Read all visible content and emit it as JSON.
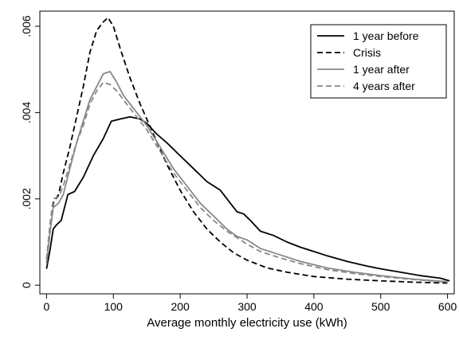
{
  "chart_data": {
    "type": "line",
    "title": "",
    "xlabel": "Average monthly electricity use (kWh)",
    "ylabel": "",
    "xlim": [
      -10,
      610
    ],
    "ylim": [
      -0.0002,
      0.00635
    ],
    "xticks": [
      0,
      100,
      200,
      300,
      400,
      500,
      600
    ],
    "xtick_labels": [
      "0",
      "100",
      "200",
      "300",
      "400",
      "500",
      "600"
    ],
    "yticks": [
      0,
      0.002,
      0.004,
      0.006
    ],
    "ytick_labels": [
      "0",
      ".002",
      ".004",
      ".006"
    ],
    "grid": false,
    "legend": {
      "position": "top-right"
    },
    "series": [
      {
        "name": "1 year before",
        "color": "#000000",
        "dash": "solid",
        "x": [
          0,
          5,
          10,
          15,
          22,
          32,
          42,
          55,
          70,
          85,
          97,
          110,
          125,
          140,
          150,
          165,
          180,
          200,
          220,
          240,
          260,
          275,
          285,
          295,
          305,
          320,
          340,
          360,
          380,
          400,
          420,
          450,
          480,
          500,
          530,
          560,
          590,
          603
        ],
        "y": [
          0.00038,
          0.0008,
          0.0013,
          0.0014,
          0.0015,
          0.0021,
          0.00217,
          0.0025,
          0.003,
          0.0034,
          0.0038,
          0.00385,
          0.0039,
          0.00385,
          0.00375,
          0.0035,
          0.0033,
          0.003,
          0.0027,
          0.0024,
          0.0022,
          0.0019,
          0.0017,
          0.00165,
          0.0015,
          0.00125,
          0.00115,
          0.001,
          0.00088,
          0.00078,
          0.00068,
          0.00055,
          0.00044,
          0.00038,
          0.0003,
          0.00022,
          0.00016,
          0.0001
        ]
      },
      {
        "name": "Crisis",
        "color": "#000000",
        "dash": "dashed",
        "x": [
          0,
          5,
          10,
          18,
          25,
          35,
          45,
          55,
          65,
          75,
          85,
          92,
          100,
          110,
          125,
          140,
          160,
          180,
          200,
          220,
          240,
          260,
          280,
          300,
          330,
          360,
          400,
          450,
          500,
          550,
          600
        ],
        "y": [
          0.0006,
          0.0012,
          0.0019,
          0.0021,
          0.0026,
          0.0032,
          0.0039,
          0.0046,
          0.0054,
          0.0059,
          0.0061,
          0.0062,
          0.006,
          0.0055,
          0.0048,
          0.0042,
          0.0035,
          0.0028,
          0.0022,
          0.0017,
          0.0013,
          0.001,
          0.00075,
          0.00058,
          0.0004,
          0.0003,
          0.0002,
          0.00014,
          0.0001,
          7e-05,
          5e-05
        ]
      },
      {
        "name": "1 year after",
        "color": "#888888",
        "dash": "solid",
        "x": [
          0,
          5,
          10,
          18,
          25,
          35,
          45,
          55,
          65,
          75,
          85,
          95,
          105,
          115,
          130,
          150,
          170,
          190,
          210,
          230,
          250,
          270,
          285,
          300,
          320,
          350,
          380,
          420,
          460,
          500,
          550,
          600
        ],
        "y": [
          0.0005,
          0.0012,
          0.0018,
          0.0019,
          0.0021,
          0.0027,
          0.0033,
          0.0038,
          0.0043,
          0.0046,
          0.0049,
          0.00495,
          0.0047,
          0.0044,
          0.0041,
          0.0037,
          0.0032,
          0.0027,
          0.0023,
          0.0019,
          0.0016,
          0.0013,
          0.00113,
          0.00105,
          0.00085,
          0.0007,
          0.00055,
          0.0004,
          0.0003,
          0.00022,
          0.00014,
          8e-05
        ]
      },
      {
        "name": "4 years after",
        "color": "#888888",
        "dash": "dashed",
        "x": [
          0,
          5,
          10,
          18,
          25,
          35,
          45,
          55,
          65,
          75,
          85,
          95,
          105,
          115,
          130,
          150,
          170,
          190,
          210,
          230,
          250,
          270,
          285,
          300,
          320,
          350,
          380,
          420,
          460,
          500,
          550,
          600
        ],
        "y": [
          0.0006,
          0.0014,
          0.002,
          0.00205,
          0.0023,
          0.0028,
          0.0033,
          0.0037,
          0.0042,
          0.0045,
          0.0047,
          0.00465,
          0.0045,
          0.0043,
          0.004,
          0.0036,
          0.0031,
          0.0026,
          0.0022,
          0.0018,
          0.0015,
          0.00125,
          0.0011,
          0.00095,
          0.00078,
          0.00063,
          0.0005,
          0.00036,
          0.00027,
          0.0002,
          0.00013,
          7e-05
        ]
      }
    ]
  }
}
